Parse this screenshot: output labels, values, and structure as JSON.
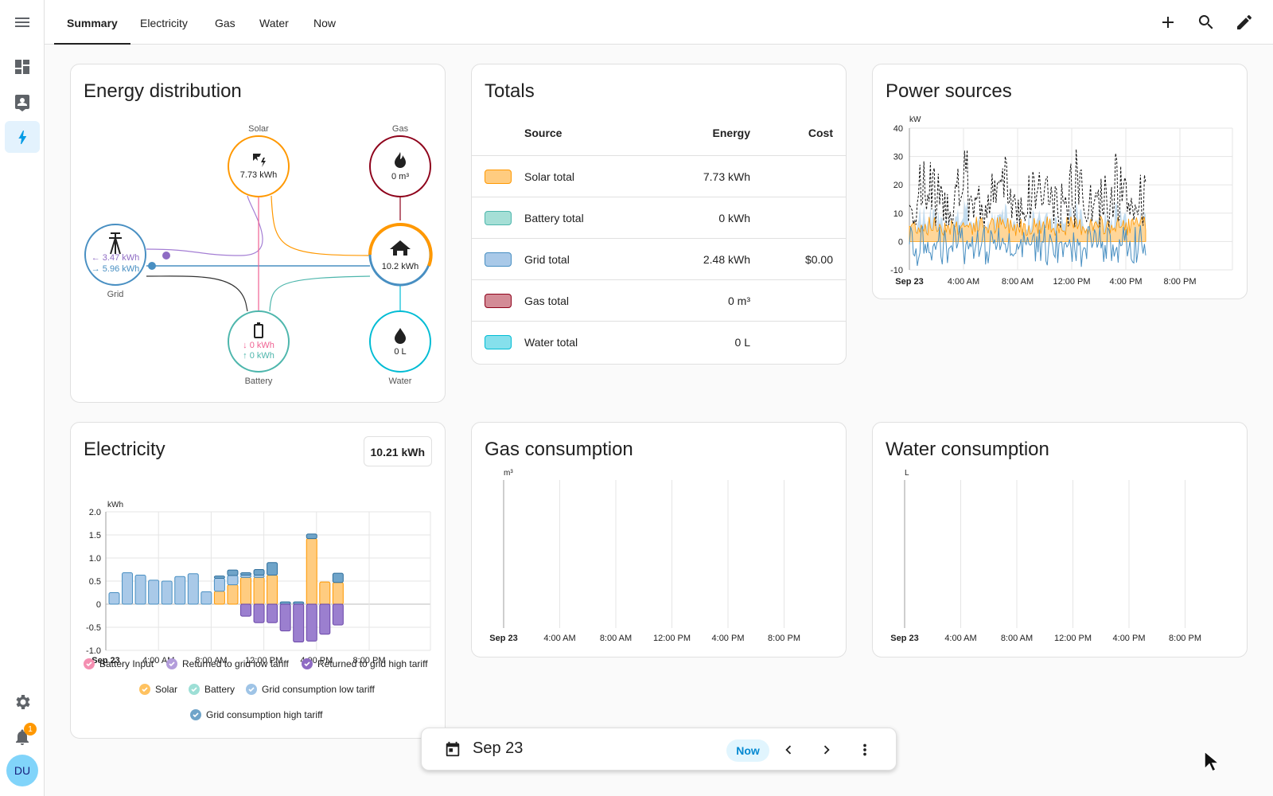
{
  "tabs": [
    "Summary",
    "Electricity",
    "Gas",
    "Water",
    "Now"
  ],
  "notifications_count": "1",
  "user_initials": "DU",
  "energy_distribution": {
    "title": "Energy distribution",
    "solar": {
      "label": "Solar",
      "value": "7.73 kWh"
    },
    "gas": {
      "label": "Gas",
      "value": "0 m³"
    },
    "grid": {
      "label": "Grid",
      "in": "3.47 kWh",
      "out": "5.96 kWh"
    },
    "home": {
      "value": "10.2 kWh"
    },
    "battery": {
      "label": "Battery",
      "in": "0 kWh",
      "out": "0 kWh"
    },
    "water": {
      "label": "Water",
      "value": "0 L"
    }
  },
  "totals": {
    "title": "Totals",
    "headers": {
      "source": "Source",
      "energy": "Energy",
      "cost": "Cost"
    },
    "rows": [
      {
        "source": "Solar total",
        "energy": "7.73 kWh",
        "cost": "",
        "color": "#ffcc80",
        "border": "#ff9800"
      },
      {
        "source": "Battery total",
        "energy": "0 kWh",
        "cost": "",
        "color": "#a5dfd6",
        "border": "#4db6ac"
      },
      {
        "source": "Grid total",
        "energy": "2.48 kWh",
        "cost": "$0.00",
        "color": "#a9c9e8",
        "border": "#488fc2"
      },
      {
        "source": "Gas total",
        "energy": "0 m³",
        "cost": "",
        "color": "#d38b96",
        "border": "#8e021b"
      },
      {
        "source": "Water total",
        "energy": "0 L",
        "cost": "",
        "color": "#86e0ec",
        "border": "#00bcd4"
      }
    ]
  },
  "power_sources": {
    "title": "Power sources",
    "unit": "kW",
    "y_ticks": [
      "40",
      "30",
      "20",
      "10",
      "0",
      "-10"
    ],
    "x_ticks": [
      "Sep 23",
      "4:00 AM",
      "8:00 AM",
      "12:00 PM",
      "4:00 PM",
      "8:00 PM"
    ]
  },
  "electricity": {
    "title": "Electricity",
    "total": "10.21 kWh",
    "unit": "kWh",
    "y_ticks": [
      "2.0",
      "1.5",
      "1.0",
      "0.5",
      "0",
      "-0.5",
      "-1.0"
    ],
    "x_ticks": [
      "Sep 23",
      "4:00 AM",
      "8:00 AM",
      "12:00 PM",
      "4:00 PM",
      "8:00 PM"
    ],
    "legend": [
      {
        "label": "Battery Input",
        "color": "#f48fb1"
      },
      {
        "label": "Returned to grid low tariff",
        "color": "#b39ddb"
      },
      {
        "label": "Returned to grid high tariff",
        "color": "#8e6bc4"
      },
      {
        "label": "Solar",
        "color": "#ffc260"
      },
      {
        "label": "Battery",
        "color": "#9ddfd6"
      },
      {
        "label": "Grid consumption low tariff",
        "color": "#9fc4e6"
      },
      {
        "label": "Grid consumption high tariff",
        "color": "#6fa4c9"
      }
    ]
  },
  "chart_data": {
    "type": "bar",
    "categories": [
      "0",
      "1",
      "2",
      "3",
      "4",
      "5",
      "6",
      "7",
      "8",
      "9",
      "10",
      "11",
      "12",
      "13",
      "14",
      "15",
      "16",
      "17"
    ],
    "series": [
      {
        "name": "Grid consumption low tariff",
        "values": [
          0.25,
          0.68,
          0.63,
          0.52,
          0.5,
          0.6,
          0.66,
          0.27,
          0.28,
          0.2,
          0.05,
          0.05,
          0.0,
          0.0,
          0.0,
          0.0,
          0.0,
          0.0
        ]
      },
      {
        "name": "Grid consumption high tariff",
        "values": [
          0,
          0,
          0,
          0,
          0,
          0,
          0,
          0,
          0.05,
          0.12,
          0.05,
          0.12,
          0.27,
          0.05,
          0.05,
          0.1,
          0.0,
          0.2
        ]
      },
      {
        "name": "Solar",
        "values": [
          0,
          0,
          0,
          0,
          0,
          0,
          0,
          0,
          0.28,
          0.42,
          0.58,
          0.58,
          0.63,
          0,
          0,
          1.42,
          0.48,
          0.47
        ]
      },
      {
        "name": "Returned to grid high tariff",
        "values": [
          0,
          0,
          0,
          0,
          0,
          0,
          0,
          0,
          0,
          0,
          -0.26,
          -0.4,
          -0.4,
          -0.58,
          -0.82,
          -0.8,
          -0.65,
          -0.45
        ]
      }
    ],
    "ylim": [
      -1.0,
      2.0
    ]
  },
  "gas_consumption": {
    "title": "Gas consumption",
    "unit": "m³",
    "x_ticks": [
      "Sep 23",
      "4:00 AM",
      "8:00 AM",
      "12:00 PM",
      "4:00 PM",
      "8:00 PM"
    ]
  },
  "water_consumption": {
    "title": "Water consumption",
    "unit": "L",
    "x_ticks": [
      "Sep 23",
      "4:00 AM",
      "8:00 AM",
      "12:00 PM",
      "4:00 PM",
      "8:00 PM"
    ]
  },
  "date_bar": {
    "date": "Sep 23",
    "now": "Now"
  }
}
